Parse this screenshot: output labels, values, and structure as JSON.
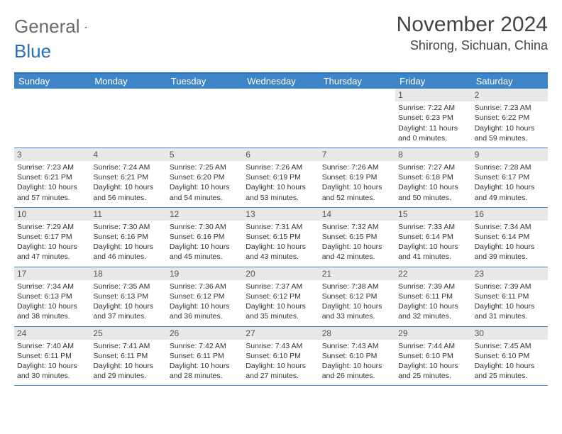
{
  "logo": {
    "word1": "General",
    "word2": "Blue"
  },
  "title": "November 2024",
  "location": "Shirong, Sichuan, China",
  "header_bg": "#3d85c6",
  "border_color": "#2a6fb5",
  "day_names": [
    "Sunday",
    "Monday",
    "Tuesday",
    "Wednesday",
    "Thursday",
    "Friday",
    "Saturday"
  ],
  "weeks": [
    [
      {
        "empty": true
      },
      {
        "empty": true
      },
      {
        "empty": true
      },
      {
        "empty": true
      },
      {
        "empty": true
      },
      {
        "day": "1",
        "sunrise": "Sunrise: 7:22 AM",
        "sunset": "Sunset: 6:23 PM",
        "daylight": "Daylight: 11 hours and 0 minutes."
      },
      {
        "day": "2",
        "sunrise": "Sunrise: 7:23 AM",
        "sunset": "Sunset: 6:22 PM",
        "daylight": "Daylight: 10 hours and 59 minutes."
      }
    ],
    [
      {
        "day": "3",
        "sunrise": "Sunrise: 7:23 AM",
        "sunset": "Sunset: 6:21 PM",
        "daylight": "Daylight: 10 hours and 57 minutes."
      },
      {
        "day": "4",
        "sunrise": "Sunrise: 7:24 AM",
        "sunset": "Sunset: 6:21 PM",
        "daylight": "Daylight: 10 hours and 56 minutes."
      },
      {
        "day": "5",
        "sunrise": "Sunrise: 7:25 AM",
        "sunset": "Sunset: 6:20 PM",
        "daylight": "Daylight: 10 hours and 54 minutes."
      },
      {
        "day": "6",
        "sunrise": "Sunrise: 7:26 AM",
        "sunset": "Sunset: 6:19 PM",
        "daylight": "Daylight: 10 hours and 53 minutes."
      },
      {
        "day": "7",
        "sunrise": "Sunrise: 7:26 AM",
        "sunset": "Sunset: 6:19 PM",
        "daylight": "Daylight: 10 hours and 52 minutes."
      },
      {
        "day": "8",
        "sunrise": "Sunrise: 7:27 AM",
        "sunset": "Sunset: 6:18 PM",
        "daylight": "Daylight: 10 hours and 50 minutes."
      },
      {
        "day": "9",
        "sunrise": "Sunrise: 7:28 AM",
        "sunset": "Sunset: 6:17 PM",
        "daylight": "Daylight: 10 hours and 49 minutes."
      }
    ],
    [
      {
        "day": "10",
        "sunrise": "Sunrise: 7:29 AM",
        "sunset": "Sunset: 6:17 PM",
        "daylight": "Daylight: 10 hours and 47 minutes."
      },
      {
        "day": "11",
        "sunrise": "Sunrise: 7:30 AM",
        "sunset": "Sunset: 6:16 PM",
        "daylight": "Daylight: 10 hours and 46 minutes."
      },
      {
        "day": "12",
        "sunrise": "Sunrise: 7:30 AM",
        "sunset": "Sunset: 6:16 PM",
        "daylight": "Daylight: 10 hours and 45 minutes."
      },
      {
        "day": "13",
        "sunrise": "Sunrise: 7:31 AM",
        "sunset": "Sunset: 6:15 PM",
        "daylight": "Daylight: 10 hours and 43 minutes."
      },
      {
        "day": "14",
        "sunrise": "Sunrise: 7:32 AM",
        "sunset": "Sunset: 6:15 PM",
        "daylight": "Daylight: 10 hours and 42 minutes."
      },
      {
        "day": "15",
        "sunrise": "Sunrise: 7:33 AM",
        "sunset": "Sunset: 6:14 PM",
        "daylight": "Daylight: 10 hours and 41 minutes."
      },
      {
        "day": "16",
        "sunrise": "Sunrise: 7:34 AM",
        "sunset": "Sunset: 6:14 PM",
        "daylight": "Daylight: 10 hours and 39 minutes."
      }
    ],
    [
      {
        "day": "17",
        "sunrise": "Sunrise: 7:34 AM",
        "sunset": "Sunset: 6:13 PM",
        "daylight": "Daylight: 10 hours and 38 minutes."
      },
      {
        "day": "18",
        "sunrise": "Sunrise: 7:35 AM",
        "sunset": "Sunset: 6:13 PM",
        "daylight": "Daylight: 10 hours and 37 minutes."
      },
      {
        "day": "19",
        "sunrise": "Sunrise: 7:36 AM",
        "sunset": "Sunset: 6:12 PM",
        "daylight": "Daylight: 10 hours and 36 minutes."
      },
      {
        "day": "20",
        "sunrise": "Sunrise: 7:37 AM",
        "sunset": "Sunset: 6:12 PM",
        "daylight": "Daylight: 10 hours and 35 minutes."
      },
      {
        "day": "21",
        "sunrise": "Sunrise: 7:38 AM",
        "sunset": "Sunset: 6:12 PM",
        "daylight": "Daylight: 10 hours and 33 minutes."
      },
      {
        "day": "22",
        "sunrise": "Sunrise: 7:39 AM",
        "sunset": "Sunset: 6:11 PM",
        "daylight": "Daylight: 10 hours and 32 minutes."
      },
      {
        "day": "23",
        "sunrise": "Sunrise: 7:39 AM",
        "sunset": "Sunset: 6:11 PM",
        "daylight": "Daylight: 10 hours and 31 minutes."
      }
    ],
    [
      {
        "day": "24",
        "sunrise": "Sunrise: 7:40 AM",
        "sunset": "Sunset: 6:11 PM",
        "daylight": "Daylight: 10 hours and 30 minutes."
      },
      {
        "day": "25",
        "sunrise": "Sunrise: 7:41 AM",
        "sunset": "Sunset: 6:11 PM",
        "daylight": "Daylight: 10 hours and 29 minutes."
      },
      {
        "day": "26",
        "sunrise": "Sunrise: 7:42 AM",
        "sunset": "Sunset: 6:11 PM",
        "daylight": "Daylight: 10 hours and 28 minutes."
      },
      {
        "day": "27",
        "sunrise": "Sunrise: 7:43 AM",
        "sunset": "Sunset: 6:10 PM",
        "daylight": "Daylight: 10 hours and 27 minutes."
      },
      {
        "day": "28",
        "sunrise": "Sunrise: 7:43 AM",
        "sunset": "Sunset: 6:10 PM",
        "daylight": "Daylight: 10 hours and 26 minutes."
      },
      {
        "day": "29",
        "sunrise": "Sunrise: 7:44 AM",
        "sunset": "Sunset: 6:10 PM",
        "daylight": "Daylight: 10 hours and 25 minutes."
      },
      {
        "day": "30",
        "sunrise": "Sunrise: 7:45 AM",
        "sunset": "Sunset: 6:10 PM",
        "daylight": "Daylight: 10 hours and 25 minutes."
      }
    ]
  ]
}
